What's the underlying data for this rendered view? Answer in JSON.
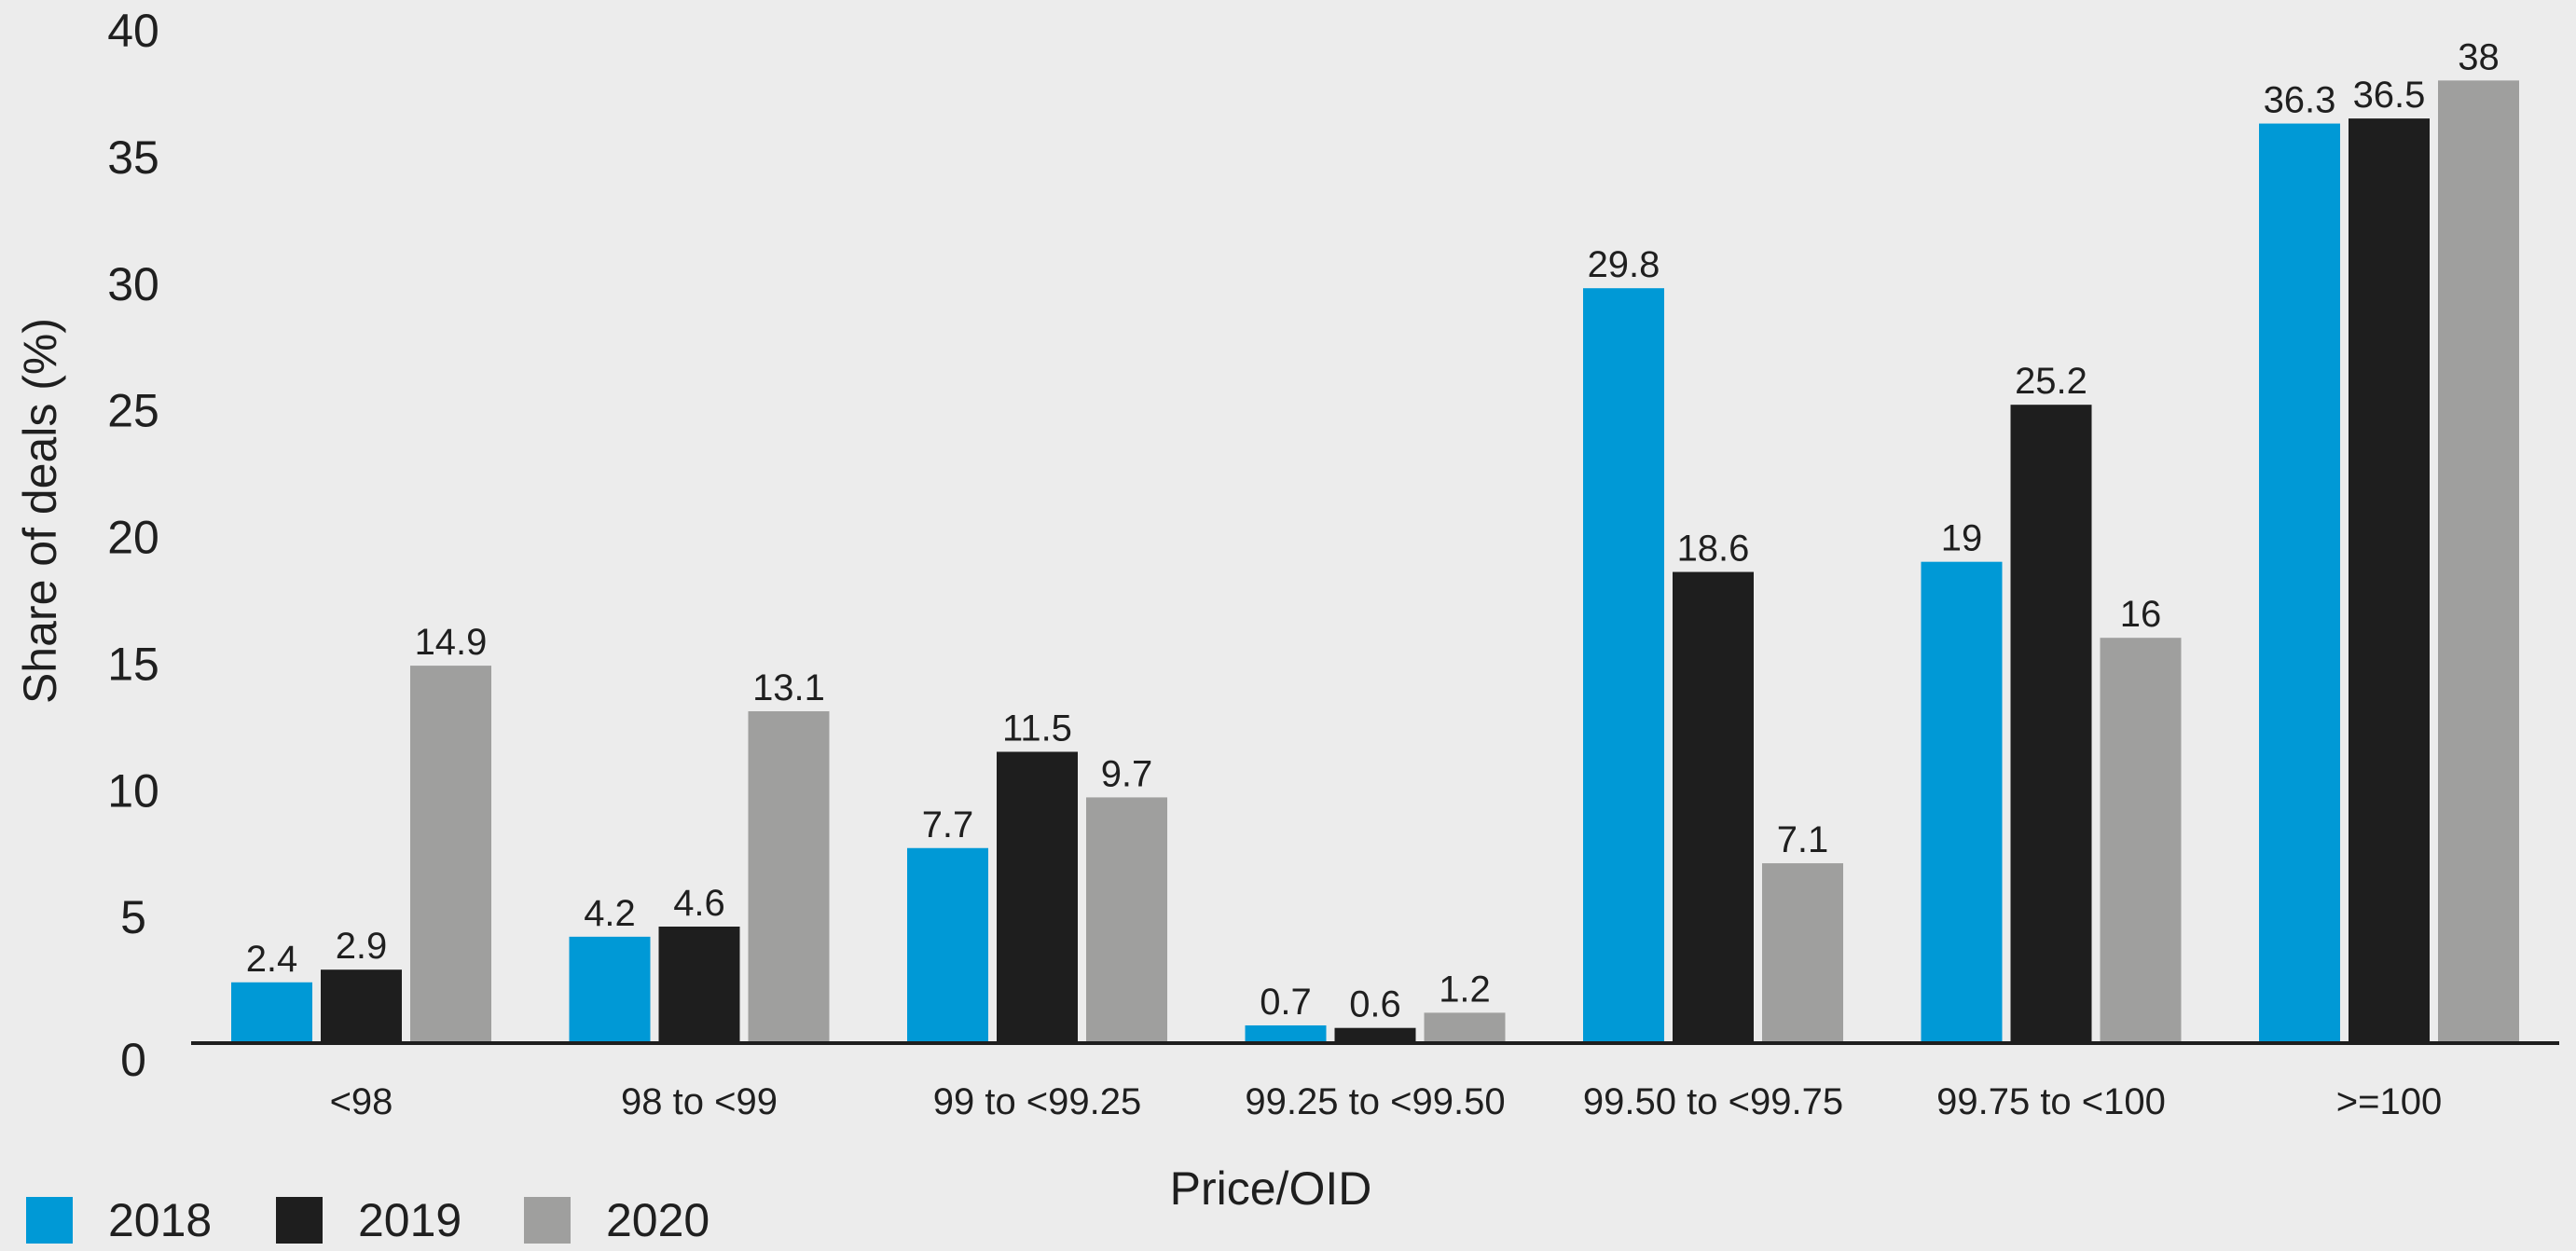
{
  "chart_data": {
    "type": "bar",
    "title": "",
    "xlabel": "Price/OID",
    "ylabel": "Share of deals (%)",
    "ylim": [
      0,
      40
    ],
    "yticks": [
      0,
      5,
      10,
      15,
      20,
      25,
      30,
      35,
      40
    ],
    "grid": false,
    "legend_position": "bottom-left",
    "categories": [
      "<98",
      "98 to <99",
      "99 to <99.25",
      "99.25 to <99.50",
      "99.50 to <99.75",
      "99.75 to <100",
      ">=100"
    ],
    "series": [
      {
        "name": "2018",
        "color": "#0099d6",
        "values": [
          2.4,
          4.2,
          7.7,
          0.7,
          29.8,
          19,
          36.3
        ]
      },
      {
        "name": "2019",
        "color": "#1e1e1e",
        "values": [
          2.9,
          4.6,
          11.5,
          0.6,
          18.6,
          25.2,
          36.5
        ]
      },
      {
        "name": "2020",
        "color": "#9f9f9e",
        "values": [
          14.9,
          13.1,
          9.7,
          1.2,
          7.1,
          16,
          38
        ]
      }
    ]
  }
}
